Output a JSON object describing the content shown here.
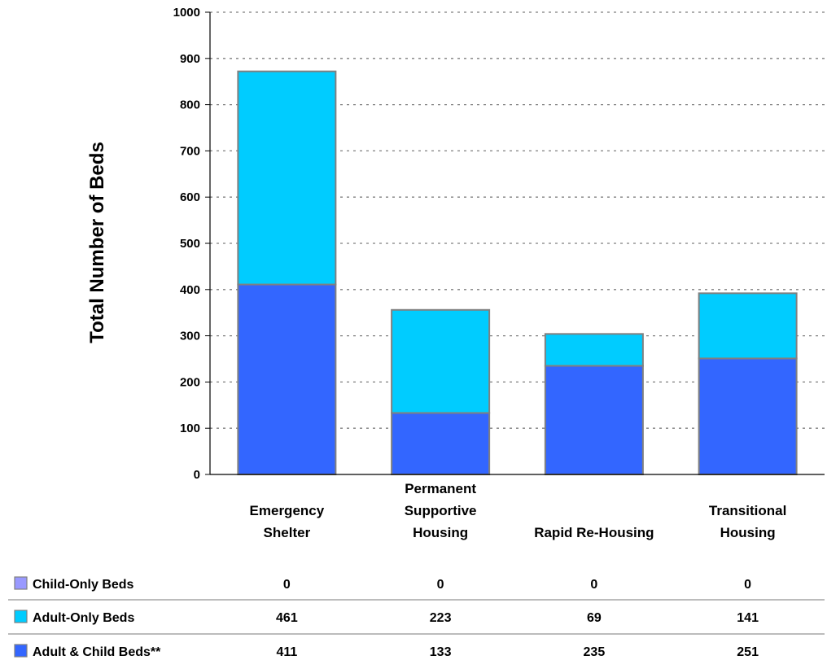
{
  "chart_data": {
    "type": "bar",
    "stacked": true,
    "ylabel": "Total Number of Beds",
    "xlabel": "",
    "ylim": [
      0,
      1000
    ],
    "yticks": [
      0,
      100,
      200,
      300,
      400,
      500,
      600,
      700,
      800,
      900,
      1000
    ],
    "grid": true,
    "categories": [
      [
        "Emergency",
        "Shelter"
      ],
      [
        "Permanent",
        "Supportive",
        "Housing"
      ],
      [
        "Rapid Re-Housing"
      ],
      [
        "Transitional",
        "Housing"
      ]
    ],
    "series": [
      {
        "name": "Child-Only Beds",
        "color": "#9999ff",
        "values": [
          0,
          0,
          0,
          0
        ]
      },
      {
        "name": "Adult-Only Beds",
        "color": "#00ccff",
        "values": [
          461,
          223,
          69,
          141
        ]
      },
      {
        "name": "Adult & Child Beds**",
        "color": "#3366ff",
        "values": [
          411,
          133,
          235,
          251
        ]
      }
    ],
    "stack_order": [
      "Adult & Child Beds**",
      "Adult-Only Beds",
      "Child-Only Beds"
    ],
    "legend_placement": "data-table-left"
  }
}
